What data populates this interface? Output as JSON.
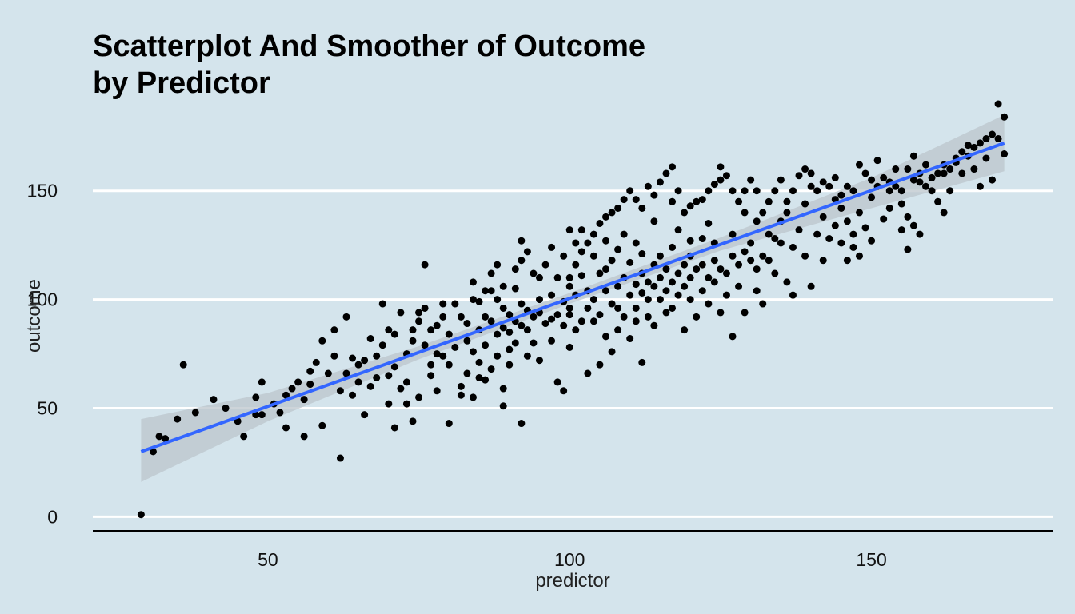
{
  "chart_data": {
    "type": "scatter",
    "title": "Scatterplot And Smoother of Outcome by Predictor",
    "title_lines": [
      "Scatterplot And Smoother of Outcome",
      "by Predictor"
    ],
    "xlabel": "predictor",
    "ylabel": "outcome",
    "xlim": [
      21,
      180
    ],
    "ylim": [
      -5,
      190
    ],
    "xticks": [
      50,
      100,
      150
    ],
    "yticks": [
      0,
      50,
      100,
      150
    ],
    "grid": "horizontal-major",
    "colors": {
      "background": "#d4e4ec",
      "points": "#000000",
      "smoother_line": "#3366ff",
      "smoother_band": "#bcc6cc",
      "grid": "#ffffff",
      "axis": "#000000"
    },
    "smoother": {
      "method": "linear",
      "x": [
        29,
        172
      ],
      "y": [
        30,
        172
      ],
      "band": [
        {
          "x": 29,
          "lower": 16,
          "upper": 45
        },
        {
          "x": 50,
          "lower": 44,
          "upper": 57
        },
        {
          "x": 75,
          "lower": 72.5,
          "upper": 78.5
        },
        {
          "x": 100,
          "lower": 98,
          "upper": 103
        },
        {
          "x": 125,
          "lower": 122.5,
          "upper": 128.5
        },
        {
          "x": 150,
          "lower": 142,
          "upper": 156
        },
        {
          "x": 172,
          "lower": 159,
          "upper": 185
        }
      ]
    },
    "points": [
      [
        29,
        1
      ],
      [
        32,
        37
      ],
      [
        33,
        36
      ],
      [
        36,
        70
      ],
      [
        41,
        54
      ],
      [
        46,
        37
      ],
      [
        48,
        55
      ],
      [
        48,
        47
      ],
      [
        49,
        62
      ],
      [
        49,
        47
      ],
      [
        53,
        41
      ],
      [
        54,
        59
      ],
      [
        56,
        37
      ],
      [
        56,
        54
      ],
      [
        57,
        61
      ],
      [
        57,
        67
      ],
      [
        58,
        71
      ],
      [
        59,
        81
      ],
      [
        59,
        42
      ],
      [
        61,
        86
      ],
      [
        62,
        58
      ],
      [
        62,
        27
      ],
      [
        63,
        92
      ],
      [
        64,
        56
      ],
      [
        64,
        73
      ],
      [
        65,
        70
      ],
      [
        66,
        72
      ],
      [
        66,
        47
      ],
      [
        67,
        60
      ],
      [
        67,
        82
      ],
      [
        68,
        64
      ],
      [
        69,
        98
      ],
      [
        69,
        79
      ],
      [
        70,
        65
      ],
      [
        70,
        52
      ],
      [
        71,
        41
      ],
      [
        71,
        69
      ],
      [
        72,
        59
      ],
      [
        73,
        75
      ],
      [
        73,
        62
      ],
      [
        73,
        52
      ],
      [
        74,
        81
      ],
      [
        74,
        44
      ],
      [
        75,
        94
      ],
      [
        75,
        90
      ],
      [
        75,
        55
      ],
      [
        76,
        116
      ],
      [
        76,
        79
      ],
      [
        77,
        70
      ],
      [
        77,
        65
      ],
      [
        78,
        88
      ],
      [
        78,
        75
      ],
      [
        78,
        58
      ],
      [
        79,
        98
      ],
      [
        79,
        74
      ],
      [
        80,
        84
      ],
      [
        80,
        70
      ],
      [
        80,
        43
      ],
      [
        81,
        78
      ],
      [
        82,
        60
      ],
      [
        82,
        92
      ],
      [
        82,
        56
      ],
      [
        83,
        81
      ],
      [
        83,
        89
      ],
      [
        84,
        108
      ],
      [
        84,
        100
      ],
      [
        84,
        76
      ],
      [
        84,
        55
      ],
      [
        85,
        86
      ],
      [
        85,
        99
      ],
      [
        85,
        71
      ],
      [
        86,
        92
      ],
      [
        86,
        79
      ],
      [
        86,
        63
      ],
      [
        87,
        104
      ],
      [
        87,
        90
      ],
      [
        87,
        68
      ],
      [
        88,
        100
      ],
      [
        88,
        84
      ],
      [
        88,
        74
      ],
      [
        89,
        96
      ],
      [
        89,
        87
      ],
      [
        89,
        59
      ],
      [
        89,
        51
      ],
      [
        90,
        93
      ],
      [
        90,
        85
      ],
      [
        90,
        77
      ],
      [
        90,
        70
      ],
      [
        91,
        105
      ],
      [
        91,
        90
      ],
      [
        91,
        80
      ],
      [
        92,
        98
      ],
      [
        92,
        88
      ],
      [
        92,
        43
      ],
      [
        92,
        127
      ],
      [
        93,
        86
      ],
      [
        93,
        74
      ],
      [
        93,
        95
      ],
      [
        94,
        92
      ],
      [
        94,
        80
      ],
      [
        95,
        100
      ],
      [
        95,
        94
      ],
      [
        95,
        72
      ],
      [
        96,
        89
      ],
      [
        97,
        81
      ],
      [
        97,
        102
      ],
      [
        97,
        91
      ],
      [
        98,
        93
      ],
      [
        98,
        62
      ],
      [
        99,
        99
      ],
      [
        99,
        88
      ],
      [
        99,
        58
      ],
      [
        100,
        110
      ],
      [
        100,
        106
      ],
      [
        100,
        96
      ],
      [
        100,
        93
      ],
      [
        100,
        78
      ],
      [
        101,
        102
      ],
      [
        101,
        86
      ],
      [
        101,
        116
      ],
      [
        102,
        122
      ],
      [
        102,
        111
      ],
      [
        102,
        90
      ],
      [
        103,
        104
      ],
      [
        103,
        96
      ],
      [
        103,
        66
      ],
      [
        104,
        100
      ],
      [
        104,
        90
      ],
      [
        104,
        120
      ],
      [
        105,
        112
      ],
      [
        105,
        93
      ],
      [
        105,
        70
      ],
      [
        106,
        114
      ],
      [
        106,
        104
      ],
      [
        106,
        83
      ],
      [
        106,
        127
      ],
      [
        107,
        118
      ],
      [
        107,
        98
      ],
      [
        107,
        76
      ],
      [
        108,
        106
      ],
      [
        108,
        96
      ],
      [
        108,
        123
      ],
      [
        108,
        86
      ],
      [
        109,
        110
      ],
      [
        109,
        92
      ],
      [
        109,
        130
      ],
      [
        110,
        102
      ],
      [
        110,
        117
      ],
      [
        110,
        82
      ],
      [
        111,
        126
      ],
      [
        111,
        107
      ],
      [
        111,
        96
      ],
      [
        111,
        90
      ],
      [
        112,
        112
      ],
      [
        112,
        103
      ],
      [
        112,
        121
      ],
      [
        112,
        71
      ],
      [
        113,
        108
      ],
      [
        113,
        100
      ],
      [
        113,
        92
      ],
      [
        114,
        116
      ],
      [
        114,
        106
      ],
      [
        114,
        88
      ],
      [
        114,
        136
      ],
      [
        115,
        110
      ],
      [
        115,
        100
      ],
      [
        115,
        120
      ],
      [
        116,
        114
      ],
      [
        116,
        104
      ],
      [
        116,
        94
      ],
      [
        117,
        124
      ],
      [
        117,
        108
      ],
      [
        117,
        96
      ],
      [
        117,
        145
      ],
      [
        118,
        112
      ],
      [
        118,
        102
      ],
      [
        118,
        132
      ],
      [
        119,
        116
      ],
      [
        119,
        106
      ],
      [
        119,
        86
      ],
      [
        120,
        120
      ],
      [
        120,
        110
      ],
      [
        120,
        100
      ],
      [
        120,
        127
      ],
      [
        121,
        114
      ],
      [
        121,
        92
      ],
      [
        122,
        128
      ],
      [
        122,
        116
      ],
      [
        122,
        104
      ],
      [
        123,
        110
      ],
      [
        123,
        98
      ],
      [
        123,
        135
      ],
      [
        124,
        118
      ],
      [
        124,
        108
      ],
      [
        124,
        126
      ],
      [
        125,
        114
      ],
      [
        125,
        94
      ],
      [
        125,
        161
      ],
      [
        126,
        112
      ],
      [
        126,
        102
      ],
      [
        127,
        120
      ],
      [
        127,
        130
      ],
      [
        127,
        83
      ],
      [
        128,
        116
      ],
      [
        128,
        106
      ],
      [
        129,
        122
      ],
      [
        129,
        140
      ],
      [
        129,
        94
      ],
      [
        130,
        118
      ],
      [
        130,
        126
      ],
      [
        131,
        114
      ],
      [
        131,
        104
      ],
      [
        131,
        136
      ],
      [
        132,
        120
      ],
      [
        132,
        98
      ],
      [
        133,
        130
      ],
      [
        133,
        118
      ],
      [
        134,
        128
      ],
      [
        134,
        112
      ],
      [
        135,
        126
      ],
      [
        135,
        136
      ],
      [
        136,
        108
      ],
      [
        136,
        140
      ],
      [
        137,
        124
      ],
      [
        137,
        102
      ],
      [
        138,
        132
      ],
      [
        139,
        144
      ],
      [
        139,
        120
      ],
      [
        140,
        152
      ],
      [
        140,
        106
      ],
      [
        141,
        130
      ],
      [
        142,
        138
      ],
      [
        142,
        118
      ],
      [
        143,
        128
      ],
      [
        144,
        156
      ],
      [
        144,
        134
      ],
      [
        145,
        126
      ],
      [
        145,
        142
      ],
      [
        146,
        118
      ],
      [
        146,
        136
      ],
      [
        147,
        124
      ],
      [
        147,
        130
      ],
      [
        148,
        140
      ],
      [
        148,
        120
      ],
      [
        149,
        133
      ],
      [
        150,
        147
      ],
      [
        150,
        127
      ],
      [
        151,
        164
      ],
      [
        152,
        137
      ],
      [
        153,
        142
      ],
      [
        153,
        150
      ],
      [
        154,
        160
      ],
      [
        155,
        132
      ],
      [
        155,
        144
      ],
      [
        156,
        138
      ],
      [
        156,
        123
      ],
      [
        157,
        166
      ],
      [
        157,
        134
      ],
      [
        158,
        154
      ],
      [
        158,
        130
      ],
      [
        159,
        162
      ],
      [
        160,
        150
      ],
      [
        161,
        145
      ],
      [
        162,
        158
      ],
      [
        162,
        140
      ],
      [
        163,
        150
      ],
      [
        164,
        163
      ],
      [
        165,
        158
      ],
      [
        166,
        171
      ],
      [
        167,
        160
      ],
      [
        168,
        152
      ],
      [
        169,
        165
      ],
      [
        170,
        155
      ],
      [
        171,
        190
      ],
      [
        172,
        184
      ],
      [
        172,
        167
      ],
      [
        171,
        174
      ],
      [
        35,
        45
      ],
      [
        31,
        30
      ],
      [
        38,
        48
      ],
      [
        43,
        50
      ],
      [
        45,
        44
      ],
      [
        51,
        52
      ],
      [
        52,
        48
      ],
      [
        53,
        56
      ],
      [
        55,
        62
      ],
      [
        60,
        66
      ],
      [
        61,
        74
      ],
      [
        63,
        66
      ],
      [
        65,
        62
      ],
      [
        68,
        74
      ],
      [
        70,
        86
      ],
      [
        71,
        84
      ],
      [
        72,
        94
      ],
      [
        74,
        86
      ],
      [
        76,
        96
      ],
      [
        77,
        86
      ],
      [
        79,
        92
      ],
      [
        81,
        98
      ],
      [
        83,
        66
      ],
      [
        85,
        64
      ],
      [
        86,
        104
      ],
      [
        87,
        112
      ],
      [
        88,
        116
      ],
      [
        89,
        106
      ],
      [
        91,
        114
      ],
      [
        92,
        118
      ],
      [
        93,
        122
      ],
      [
        94,
        112
      ],
      [
        95,
        110
      ],
      [
        96,
        116
      ],
      [
        97,
        124
      ],
      [
        98,
        110
      ],
      [
        99,
        120
      ],
      [
        100,
        132
      ],
      [
        101,
        126
      ],
      [
        102,
        132
      ],
      [
        103,
        126
      ],
      [
        104,
        130
      ],
      [
        105,
        135
      ],
      [
        106,
        138
      ],
      [
        107,
        140
      ],
      [
        108,
        142
      ],
      [
        109,
        146
      ],
      [
        110,
        150
      ],
      [
        111,
        146
      ],
      [
        112,
        142
      ],
      [
        113,
        152
      ],
      [
        114,
        148
      ],
      [
        115,
        154
      ],
      [
        116,
        158
      ],
      [
        117,
        161
      ],
      [
        118,
        150
      ],
      [
        119,
        140
      ],
      [
        120,
        143
      ],
      [
        121,
        145
      ],
      [
        122,
        146
      ],
      [
        123,
        150
      ],
      [
        124,
        153
      ],
      [
        125,
        155
      ],
      [
        126,
        157
      ],
      [
        127,
        150
      ],
      [
        128,
        145
      ],
      [
        129,
        150
      ],
      [
        130,
        155
      ],
      [
        131,
        150
      ],
      [
        132,
        140
      ],
      [
        133,
        145
      ],
      [
        134,
        150
      ],
      [
        135,
        155
      ],
      [
        136,
        145
      ],
      [
        137,
        150
      ],
      [
        138,
        157
      ],
      [
        139,
        160
      ],
      [
        140,
        158
      ],
      [
        141,
        150
      ],
      [
        142,
        154
      ],
      [
        143,
        152
      ],
      [
        144,
        146
      ],
      [
        145,
        148
      ],
      [
        146,
        152
      ],
      [
        147,
        150
      ],
      [
        148,
        162
      ],
      [
        149,
        158
      ],
      [
        150,
        155
      ],
      [
        151,
        152
      ],
      [
        152,
        156
      ],
      [
        153,
        154
      ],
      [
        154,
        152
      ],
      [
        155,
        150
      ],
      [
        156,
        160
      ],
      [
        157,
        155
      ],
      [
        158,
        158
      ],
      [
        159,
        152
      ],
      [
        160,
        156
      ],
      [
        161,
        158
      ],
      [
        162,
        162
      ],
      [
        163,
        160
      ],
      [
        164,
        165
      ],
      [
        165,
        168
      ],
      [
        166,
        166
      ],
      [
        167,
        170
      ],
      [
        168,
        172
      ],
      [
        169,
        174
      ],
      [
        170,
        176
      ]
    ]
  }
}
